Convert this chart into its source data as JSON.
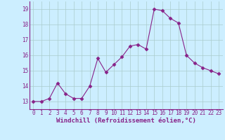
{
  "x": [
    0,
    1,
    2,
    3,
    4,
    5,
    6,
    7,
    8,
    9,
    10,
    11,
    12,
    13,
    14,
    15,
    16,
    17,
    18,
    19,
    20,
    21,
    22,
    23
  ],
  "y": [
    13.0,
    13.0,
    13.2,
    14.2,
    13.5,
    13.2,
    13.2,
    14.0,
    15.8,
    14.9,
    15.4,
    15.9,
    16.6,
    16.7,
    16.4,
    19.0,
    18.9,
    18.4,
    18.1,
    16.0,
    15.5,
    15.2,
    15.0,
    14.8
  ],
  "line_color": "#882288",
  "marker": "D",
  "marker_size": 2.5,
  "bg_color": "#cceeff",
  "grid_color": "#aacccc",
  "xlabel": "Windchill (Refroidissement éolien,°C)",
  "xlabel_color": "#882288",
  "ylim": [
    12.5,
    19.5
  ],
  "xlim": [
    -0.5,
    23.5
  ],
  "yticks": [
    13,
    14,
    15,
    16,
    17,
    18,
    19
  ],
  "xticks": [
    0,
    1,
    2,
    3,
    4,
    5,
    6,
    7,
    8,
    9,
    10,
    11,
    12,
    13,
    14,
    15,
    16,
    17,
    18,
    19,
    20,
    21,
    22,
    23
  ],
  "tick_color": "#882288",
  "tick_fontsize": 5.5,
  "xlabel_fontsize": 6.5,
  "linewidth": 0.8
}
